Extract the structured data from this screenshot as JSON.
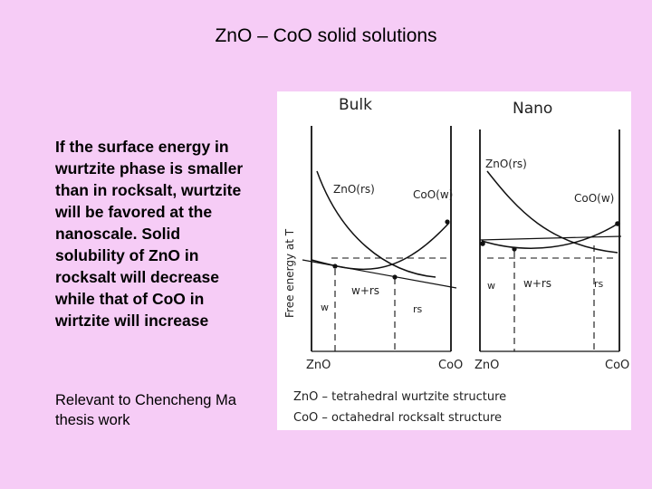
{
  "slide": {
    "title": "ZnO – CoO solid solutions",
    "body": "If the surface energy in wurtzite phase is smaller than in rocksalt, wurtzite will be favored at the nanoscale. Solid solubility of ZnO in rocksalt will decrease while that of CoO in wirtzite will increase",
    "note": "Relevant to Chencheng Ma thesis work"
  },
  "figure": {
    "y_axis_label": "Free energy at T",
    "panels": [
      {
        "title": "Bulk",
        "left_end": "ZnO",
        "right_end": "CoO",
        "curve_labels": {
          "rocksalt_curve": "ZnO(rs)",
          "wurtzite_curve": "CoO(w)"
        },
        "regions": {
          "left": "w",
          "middle": "w+rs",
          "right": "rs"
        }
      },
      {
        "title": "Nano",
        "left_end": "ZnO",
        "right_end": "CoO",
        "curve_labels": {
          "rocksalt_curve": "ZnO(rs)",
          "wurtzite_curve": "CoO(w)"
        },
        "regions": {
          "left": "w",
          "middle": "w+rs",
          "right": "rs"
        }
      }
    ],
    "legend": [
      "ZnO – tetrahedral wurtzite structure",
      "CoO – octahedral rocksalt structure"
    ]
  }
}
